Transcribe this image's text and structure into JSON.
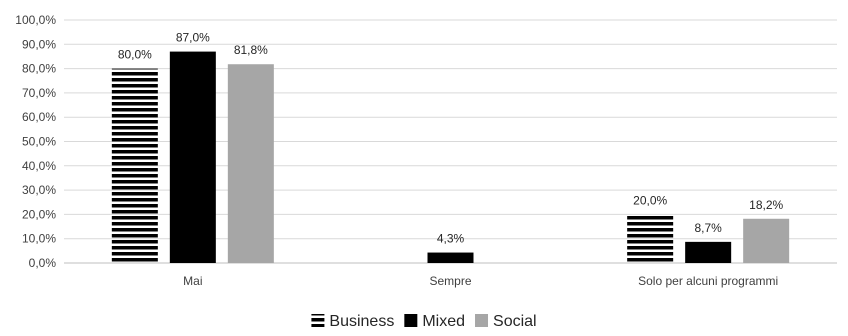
{
  "chart_data": {
    "type": "bar",
    "categories": [
      "Mai",
      "Sempre",
      "Solo per alcuni programmi"
    ],
    "series": [
      {
        "name": "Business",
        "values": [
          80.0,
          null,
          20.0
        ],
        "labels": [
          "80,0%",
          "",
          "20,0%"
        ],
        "pattern": "horizontal-stripes",
        "color": "#000000"
      },
      {
        "name": "Mixed",
        "values": [
          87.0,
          4.3,
          8.7
        ],
        "labels": [
          "87,0%",
          "4,3%",
          "8,7%"
        ],
        "pattern": "solid",
        "color": "#000000"
      },
      {
        "name": "Social",
        "values": [
          81.8,
          null,
          18.2
        ],
        "labels": [
          "81,8%",
          "",
          "18,2%"
        ],
        "pattern": "solid",
        "color": "#a6a6a6"
      }
    ],
    "ylim": [
      0,
      100
    ],
    "yticks": [
      "0,0%",
      "10,0%",
      "20,0%",
      "30,0%",
      "40,0%",
      "50,0%",
      "60,0%",
      "70,0%",
      "80,0%",
      "90,0%",
      "100,0%"
    ],
    "grid": true,
    "legend": "bottom-center"
  }
}
